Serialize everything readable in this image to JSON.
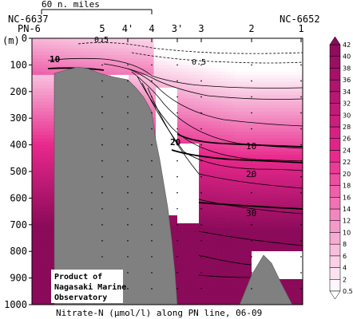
{
  "chart_data": {
    "type": "heatmap",
    "title": "Nitrate-N (μmol/l) along PN line, 06-09",
    "ylabel": "(m)",
    "ylim": [
      0,
      1000
    ],
    "yticks": [
      0,
      100,
      200,
      300,
      400,
      500,
      600,
      700,
      800,
      900,
      1000
    ],
    "scale_label": "60 n. miles",
    "end_labels": {
      "left_top": "NC-6637",
      "left_bottom": "PN-6",
      "right_top": "NC-6652"
    },
    "stations": [
      "5",
      "4'",
      "4",
      "3'",
      "3",
      "2",
      "1"
    ],
    "colorbar": {
      "levels": [
        0.5,
        2,
        4,
        6,
        8,
        10,
        12,
        14,
        16,
        18,
        20,
        22,
        24,
        26,
        28,
        30,
        32,
        34,
        36,
        38,
        40,
        42
      ],
      "low_color": "#ffffff",
      "high_color": "#8b0a5a"
    },
    "contour_labels": [
      "0.5",
      "0.5",
      "10",
      "10",
      "20",
      "20",
      "30"
    ],
    "credit": [
      "Product of",
      "Nagasaki Marine",
      "Observatory"
    ]
  }
}
